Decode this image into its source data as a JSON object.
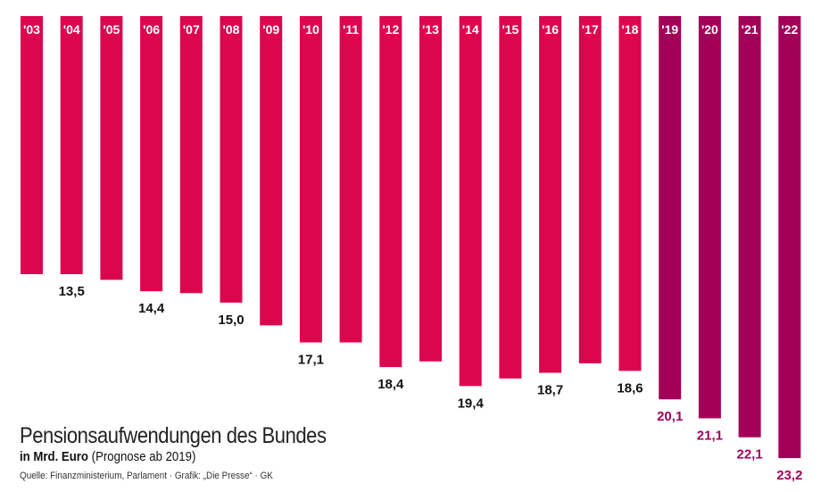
{
  "chart_data": {
    "type": "bar",
    "orientation": "vertical-hanging",
    "title": "Pensionsaufwendungen des Bundes",
    "subtitle_bold": "in Mrd. Euro",
    "subtitle_rest": "(Prognose ab 2019)",
    "source": "Quelle: Finanzministerium, Parlament · Grafik: „Die Presse“ · GK",
    "categories": [
      "'03",
      "'04",
      "'05",
      "'06",
      "'07",
      "'08",
      "'09",
      "'10",
      "'11",
      "'12",
      "'13",
      "'14",
      "'15",
      "'16",
      "'17",
      "'18",
      "'19",
      "'20",
      "'21",
      "'22"
    ],
    "values": [
      13.5,
      13.5,
      13.8,
      14.4,
      14.5,
      15.0,
      16.2,
      17.1,
      17.1,
      18.4,
      18.1,
      19.4,
      19.0,
      18.7,
      18.2,
      18.6,
      20.1,
      21.1,
      22.1,
      23.2
    ],
    "labels": [
      null,
      "13,5",
      null,
      "14,4",
      null,
      "15,0",
      null,
      "17,1",
      null,
      "18,4",
      null,
      "19,4",
      null,
      "18,7",
      null,
      "18,6",
      "20,1",
      "21,1",
      "22,1",
      "23,2"
    ],
    "forecast_from_index": 16,
    "colors": {
      "actual": "#dc064f",
      "forecast": "#a3005a",
      "label_actual": "#111111",
      "label_forecast": "#a3005a"
    },
    "ylim": [
      0,
      23.2
    ]
  }
}
